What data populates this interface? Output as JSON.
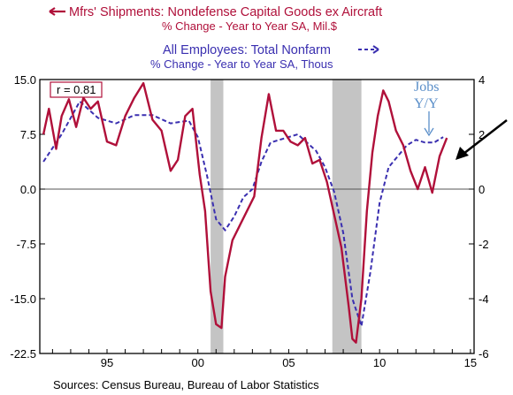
{
  "chart_data": {
    "type": "line",
    "title": "",
    "series": [
      {
        "name": "Mfrs' Shipments: Nondefense Capital Goods ex Aircraft",
        "subtitle": "% Change - Year to Year   SA, Mil.$",
        "axis": "left",
        "color": "#b0103a",
        "x": [
          1992.0,
          1992.3,
          1992.7,
          1993.0,
          1993.4,
          1993.8,
          1994.2,
          1994.6,
          1995.0,
          1995.5,
          1996.0,
          1996.5,
          1997.0,
          1997.5,
          1998.0,
          1998.5,
          1999.0,
          1999.4,
          1999.8,
          2000.2,
          2000.6,
          2000.9,
          2001.2,
          2001.5,
          2001.8,
          2002.0,
          2002.4,
          2002.8,
          2003.2,
          2003.6,
          2004.0,
          2004.4,
          2004.8,
          2005.2,
          2005.6,
          2006.0,
          2006.4,
          2006.8,
          2007.2,
          2007.6,
          2008.0,
          2008.4,
          2008.8,
          2009.0,
          2009.2,
          2009.5,
          2009.8,
          2010.1,
          2010.4,
          2010.7,
          2011.0,
          2011.4,
          2011.8,
          2012.2,
          2012.6,
          2013.0,
          2013.4,
          2013.8,
          2014.2
        ],
        "values": [
          7.5,
          11.0,
          5.5,
          10.0,
          12.3,
          8.5,
          12.5,
          11.0,
          12.0,
          6.5,
          6.0,
          10.0,
          12.5,
          14.5,
          9.5,
          8.0,
          2.5,
          4.0,
          10.0,
          11.0,
          2.0,
          -3.0,
          -14.0,
          -18.5,
          -19.0,
          -12.0,
          -7.0,
          -5.0,
          -3.0,
          -1.0,
          7.0,
          13.0,
          8.0,
          8.0,
          6.5,
          6.0,
          7.0,
          3.5,
          4.0,
          1.0,
          -3.5,
          -8.0,
          -16.0,
          -20.5,
          -21.0,
          -15.0,
          -3.0,
          5.0,
          10.0,
          13.5,
          12.0,
          8.0,
          6.0,
          2.5,
          0.0,
          3.0,
          -0.5,
          4.5,
          7.0
        ]
      },
      {
        "name": "All Employees: Total Nonfarm",
        "subtitle": "% Change - Year to Year   SA, Thous",
        "axis": "right",
        "color": "#3a2fb0",
        "x": [
          1992.0,
          1993.0,
          1994.0,
          1995.0,
          1996.0,
          1997.0,
          1998.0,
          1999.0,
          2000.0,
          2000.5,
          2001.0,
          2001.5,
          2002.0,
          2002.5,
          2003.0,
          2003.5,
          2004.0,
          2004.5,
          2005.0,
          2005.5,
          2006.0,
          2006.5,
          2007.0,
          2007.5,
          2008.0,
          2008.5,
          2009.0,
          2009.5,
          2010.0,
          2010.5,
          2011.0,
          2011.5,
          2012.0,
          2012.5,
          2013.0,
          2013.5,
          2014.0
        ],
        "values": [
          1.0,
          2.0,
          3.2,
          2.6,
          2.4,
          2.7,
          2.7,
          2.4,
          2.5,
          1.9,
          0.5,
          -1.1,
          -1.5,
          -1.0,
          -0.3,
          0.0,
          1.0,
          1.7,
          1.8,
          1.9,
          2.0,
          1.7,
          1.4,
          0.8,
          -0.1,
          -1.6,
          -4.0,
          -5.0,
          -3.0,
          -0.5,
          0.8,
          1.2,
          1.6,
          1.8,
          1.7,
          1.7,
          1.9
        ]
      }
    ],
    "xlim": [
      1991.8,
      2015.7
    ],
    "left_axis": {
      "ylim": [
        -22.5,
        15.0
      ],
      "ticks": [
        "15.0",
        "7.5",
        "0.0",
        "-7.5",
        "-15.0",
        "-22.5"
      ]
    },
    "right_axis": {
      "ylim": [
        -6,
        4
      ],
      "ticks": [
        "4",
        "2",
        "0",
        "-2",
        "-4",
        "-6"
      ]
    },
    "x_ticks": [
      "95",
      "00",
      "05",
      "10",
      "15"
    ],
    "recessions": [
      [
        2001.2,
        2001.9
      ],
      [
        2007.9,
        2009.5
      ]
    ],
    "annotations": {
      "correlation": "r = 0.81",
      "jobs_line1": "Jobs",
      "jobs_line2": "Y/Y"
    },
    "source": "Sources:  Census Bureau, Bureau of Labor Statistics"
  }
}
